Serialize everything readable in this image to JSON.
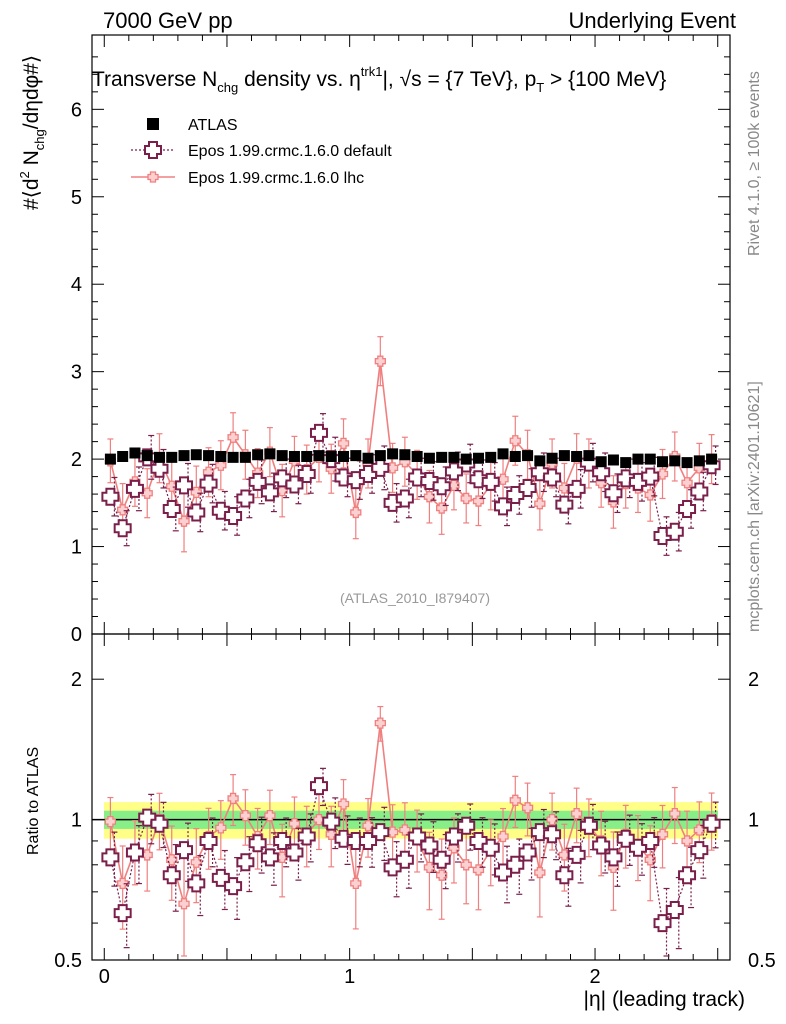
{
  "header": {
    "left_title": "7000 GeV pp",
    "right_title": "Underlying Event"
  },
  "side_labels": {
    "rivet": "Rivet 4.1.0, ≥ 100k events",
    "mcplots": "mcplots.cern.ch [arXiv:2401.10621]"
  },
  "colors": {
    "data": "#000000",
    "default": "#7a1f4a",
    "lhc": "#f08080",
    "band_yellow": "#ffff88",
    "band_green": "#88ee88",
    "watermark": "#999999"
  },
  "chart_data": {
    "type": "scatter",
    "title_parts": {
      "a": "Transverse N",
      "a_sub": "chg",
      "b": " density vs. η",
      "b_sup": "trk1",
      "c": "|, √s = {7 TeV}, p",
      "c_sub": "T",
      "d": " > {100 MeV}"
    },
    "ylabel_parts": {
      "a": "#⟨d",
      "a_sup": "2",
      "b": " N",
      "b_sub": "chg",
      "c": "/dηdφ#⟩"
    },
    "xlabel": "|η| (leading track)",
    "ratio_ylabel": "Ratio to ATLAS",
    "analysis_id": "(ATLAS_2010_I879407)",
    "xlim": [
      -0.05,
      2.55
    ],
    "ylim": [
      0,
      6.85
    ],
    "ratio_ylim": [
      0.5,
      2.5
    ],
    "x_ticks": [
      "0",
      "1",
      "2"
    ],
    "y_ticks": [
      "0",
      "1",
      "2",
      "3",
      "4",
      "5",
      "6"
    ],
    "ratio_y_ticks": [
      "0.5",
      "1",
      "2"
    ],
    "legend": [
      {
        "label": "ATLAS",
        "style": "data"
      },
      {
        "label": "Epos 1.99.crmc.1.6.0 default",
        "style": "default"
      },
      {
        "label": "Epos 1.99.crmc.1.6.0 lhc",
        "style": "lhc"
      }
    ],
    "x": [
      0.025,
      0.075,
      0.125,
      0.175,
      0.225,
      0.275,
      0.325,
      0.375,
      0.425,
      0.475,
      0.525,
      0.575,
      0.625,
      0.675,
      0.725,
      0.775,
      0.825,
      0.875,
      0.925,
      0.975,
      1.025,
      1.075,
      1.125,
      1.175,
      1.225,
      1.275,
      1.325,
      1.375,
      1.425,
      1.475,
      1.525,
      1.575,
      1.625,
      1.675,
      1.725,
      1.775,
      1.825,
      1.875,
      1.925,
      1.975,
      2.025,
      2.075,
      2.125,
      2.175,
      2.225,
      2.275,
      2.325,
      2.375,
      2.425,
      2.475
    ],
    "series": [
      {
        "name": "ATLAS",
        "values": [
          2.0,
          2.03,
          2.07,
          2.04,
          2.02,
          2.02,
          2.04,
          2.05,
          2.04,
          2.03,
          2.02,
          2.02,
          2.05,
          2.06,
          2.04,
          2.03,
          2.03,
          2.04,
          2.03,
          2.03,
          2.04,
          2.01,
          2.04,
          2.06,
          2.05,
          2.03,
          2.01,
          2.02,
          2.02,
          2.0,
          2.01,
          2.02,
          2.06,
          2.03,
          2.04,
          1.98,
          2.01,
          2.04,
          2.03,
          2.04,
          1.97,
          1.99,
          1.96,
          2.0,
          2.0,
          1.97,
          1.98,
          1.96,
          1.98,
          2.0
        ],
        "errors": [
          0.03,
          0.03,
          0.03,
          0.03,
          0.03,
          0.03,
          0.03,
          0.03,
          0.03,
          0.03,
          0.03,
          0.03,
          0.03,
          0.03,
          0.03,
          0.03,
          0.03,
          0.03,
          0.03,
          0.03,
          0.03,
          0.03,
          0.03,
          0.03,
          0.03,
          0.03,
          0.03,
          0.03,
          0.03,
          0.03,
          0.03,
          0.03,
          0.03,
          0.03,
          0.03,
          0.03,
          0.03,
          0.03,
          0.03,
          0.03,
          0.03,
          0.03,
          0.03,
          0.03,
          0.03,
          0.03,
          0.03,
          0.03,
          0.03,
          0.03
        ]
      },
      {
        "name": "Epos 1.99.crmc.1.6.0 default",
        "values": [
          1.57,
          1.21,
          1.66,
          2.02,
          1.89,
          1.43,
          1.7,
          1.39,
          1.72,
          1.41,
          1.35,
          1.55,
          1.74,
          1.62,
          1.78,
          1.71,
          1.83,
          2.3,
          2.0,
          1.79,
          1.76,
          1.83,
          1.9,
          1.5,
          1.55,
          1.79,
          1.75,
          1.69,
          1.86,
          1.95,
          1.77,
          1.74,
          1.46,
          1.59,
          1.67,
          1.85,
          1.79,
          1.48,
          1.66,
          1.96,
          1.85,
          1.61,
          1.78,
          1.74,
          1.8,
          1.12,
          1.17,
          1.43,
          1.63,
          1.93
        ],
        "errors": [
          0.22,
          0.2,
          0.25,
          0.25,
          0.22,
          0.25,
          0.25,
          0.22,
          0.22,
          0.22,
          0.22,
          0.22,
          0.25,
          0.22,
          0.22,
          0.22,
          0.22,
          0.22,
          0.25,
          0.22,
          0.22,
          0.22,
          0.25,
          0.22,
          0.22,
          0.22,
          0.22,
          0.22,
          0.22,
          0.22,
          0.22,
          0.22,
          0.22,
          0.22,
          0.22,
          0.22,
          0.22,
          0.22,
          0.22,
          0.22,
          0.22,
          0.22,
          0.22,
          0.22,
          0.22,
          0.22,
          0.22,
          0.22,
          0.22,
          0.22
        ],
        "ratio": [
          0.83,
          0.63,
          0.85,
          1.01,
          0.98,
          0.76,
          0.86,
          0.73,
          0.9,
          0.75,
          0.72,
          0.81,
          0.89,
          0.83,
          0.9,
          0.85,
          0.92,
          1.18,
          0.99,
          0.91,
          0.9,
          0.9,
          0.94,
          0.79,
          0.82,
          0.92,
          0.88,
          0.82,
          0.92,
          0.97,
          0.9,
          0.87,
          0.77,
          0.8,
          0.85,
          0.94,
          0.93,
          0.76,
          0.84,
          0.97,
          0.88,
          0.83,
          0.91,
          0.87,
          0.9,
          0.6,
          0.64,
          0.76,
          0.86,
          0.98
        ]
      },
      {
        "name": "Epos 1.99.crmc.1.6.0 lhc",
        "values": [
          1.98,
          1.42,
          1.74,
          1.61,
          2.01,
          1.69,
          1.29,
          1.62,
          1.85,
          1.93,
          2.25,
          2.05,
          1.84,
          2.08,
          1.64,
          1.98,
          1.88,
          2.02,
          1.89,
          2.18,
          1.39,
          1.95,
          3.12,
          1.9,
          1.97,
          1.82,
          1.57,
          1.44,
          1.7,
          1.55,
          1.52,
          1.7,
          1.77,
          2.21,
          2.05,
          1.49,
          1.95,
          1.67,
          2.01,
          1.95,
          1.73,
          1.51,
          1.72,
          1.67,
          1.59,
          1.83,
          2.03,
          1.73,
          1.9,
          2.0
        ],
        "errors": [
          0.25,
          0.3,
          0.28,
          0.28,
          0.28,
          0.3,
          0.35,
          0.3,
          0.28,
          0.28,
          0.28,
          0.28,
          0.28,
          0.28,
          0.3,
          0.28,
          0.28,
          0.28,
          0.28,
          0.28,
          0.3,
          0.28,
          0.28,
          0.28,
          0.28,
          0.28,
          0.3,
          0.3,
          0.28,
          0.28,
          0.28,
          0.28,
          0.28,
          0.28,
          0.28,
          0.3,
          0.28,
          0.28,
          0.28,
          0.28,
          0.28,
          0.3,
          0.28,
          0.28,
          0.3,
          0.28,
          0.28,
          0.28,
          0.28,
          0.28
        ],
        "ratio": [
          0.99,
          0.73,
          0.86,
          0.84,
          1.0,
          0.82,
          0.66,
          0.81,
          0.92,
          0.96,
          1.11,
          1.02,
          0.92,
          1.02,
          0.83,
          0.98,
          0.93,
          1.0,
          0.93,
          1.08,
          0.73,
          0.97,
          1.61,
          0.94,
          0.95,
          0.91,
          0.79,
          0.76,
          0.87,
          0.8,
          0.78,
          0.86,
          0.92,
          1.1,
          1.06,
          0.77,
          1.0,
          0.84,
          1.03,
          0.97,
          0.9,
          0.79,
          0.93,
          0.88,
          0.82,
          0.93,
          1.03,
          0.9,
          0.95,
          1.0
        ]
      }
    ]
  }
}
